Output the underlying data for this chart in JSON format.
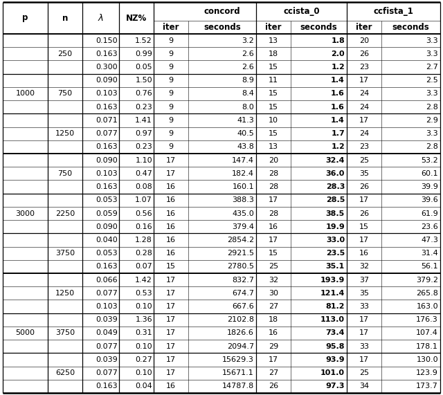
{
  "rows": [
    [
      "",
      "250",
      "0.150",
      "1.52",
      "9",
      "3.2",
      "13",
      "1.8",
      "20",
      "3.3"
    ],
    [
      "",
      "",
      "0.163",
      "0.99",
      "9",
      "2.6",
      "18",
      "2.0",
      "26",
      "3.3"
    ],
    [
      "",
      "",
      "0.300",
      "0.05",
      "9",
      "2.6",
      "15",
      "1.2",
      "23",
      "2.7"
    ],
    [
      "",
      "750",
      "0.090",
      "1.50",
      "9",
      "8.9",
      "11",
      "1.4",
      "17",
      "2.5"
    ],
    [
      "",
      "",
      "0.103",
      "0.76",
      "9",
      "8.4",
      "15",
      "1.6",
      "24",
      "3.3"
    ],
    [
      "",
      "",
      "0.163",
      "0.23",
      "9",
      "8.0",
      "15",
      "1.6",
      "24",
      "2.8"
    ],
    [
      "",
      "1250",
      "0.071",
      "1.41",
      "9",
      "41.3",
      "10",
      "1.4",
      "17",
      "2.9"
    ],
    [
      "",
      "",
      "0.077",
      "0.97",
      "9",
      "40.5",
      "15",
      "1.7",
      "24",
      "3.3"
    ],
    [
      "",
      "",
      "0.163",
      "0.23",
      "9",
      "43.8",
      "13",
      "1.2",
      "23",
      "2.8"
    ],
    [
      "",
      "750",
      "0.090",
      "1.10",
      "17",
      "147.4",
      "20",
      "32.4",
      "25",
      "53.2"
    ],
    [
      "",
      "",
      "0.103",
      "0.47",
      "17",
      "182.4",
      "28",
      "36.0",
      "35",
      "60.1"
    ],
    [
      "",
      "",
      "0.163",
      "0.08",
      "16",
      "160.1",
      "28",
      "28.3",
      "26",
      "39.9"
    ],
    [
      "",
      "2250",
      "0.053",
      "1.07",
      "16",
      "388.3",
      "17",
      "28.5",
      "17",
      "39.6"
    ],
    [
      "",
      "",
      "0.059",
      "0.56",
      "16",
      "435.0",
      "28",
      "38.5",
      "26",
      "61.9"
    ],
    [
      "",
      "",
      "0.090",
      "0.16",
      "16",
      "379.4",
      "16",
      "19.9",
      "15",
      "23.6"
    ],
    [
      "",
      "3750",
      "0.040",
      "1.28",
      "16",
      "2854.2",
      "17",
      "33.0",
      "17",
      "47.3"
    ],
    [
      "",
      "",
      "0.053",
      "0.28",
      "16",
      "2921.5",
      "15",
      "23.5",
      "16",
      "31.4"
    ],
    [
      "",
      "",
      "0.163",
      "0.07",
      "15",
      "2780.5",
      "25",
      "35.1",
      "32",
      "56.1"
    ],
    [
      "",
      "1250",
      "0.066",
      "1.42",
      "17",
      "832.7",
      "32",
      "193.9",
      "37",
      "379.2"
    ],
    [
      "",
      "",
      "0.077",
      "0.53",
      "17",
      "674.7",
      "30",
      "121.4",
      "35",
      "265.8"
    ],
    [
      "",
      "",
      "0.103",
      "0.10",
      "17",
      "667.6",
      "27",
      "81.2",
      "33",
      "163.0"
    ],
    [
      "",
      "3750",
      "0.039",
      "1.36",
      "17",
      "2102.8",
      "18",
      "113.0",
      "17",
      "176.3"
    ],
    [
      "",
      "",
      "0.049",
      "0.31",
      "17",
      "1826.6",
      "16",
      "73.4",
      "17",
      "107.4"
    ],
    [
      "",
      "",
      "0.077",
      "0.10",
      "17",
      "2094.7",
      "29",
      "95.8",
      "33",
      "178.1"
    ],
    [
      "",
      "6250",
      "0.039",
      "0.27",
      "17",
      "15629.3",
      "17",
      "93.9",
      "17",
      "130.0"
    ],
    [
      "",
      "",
      "0.077",
      "0.10",
      "17",
      "15671.1",
      "27",
      "101.0",
      "25",
      "123.9"
    ],
    [
      "",
      "",
      "0.163",
      "0.04",
      "16",
      "14787.8",
      "26",
      "97.3",
      "34",
      "173.7"
    ]
  ],
  "p_labels": {
    "0": "1000",
    "9": "3000",
    "18": "5000"
  },
  "p_spans": {
    "0": 9,
    "9": 9,
    "18": 9
  },
  "n_labels": {
    "0": "250",
    "3": "750",
    "6": "1250",
    "9": "750",
    "12": "2250",
    "15": "3750",
    "18": "1250",
    "21": "3750",
    "24": "6250"
  },
  "n_spans": {
    "0": 3,
    "3": 3,
    "6": 3,
    "9": 3,
    "12": 3,
    "15": 3,
    "18": 3,
    "21": 3,
    "24": 3
  },
  "p_group_ends": [
    8,
    17
  ],
  "n_group_ends": [
    2,
    5,
    8,
    11,
    14,
    17,
    20,
    23,
    26
  ],
  "font_size": 8.0,
  "header_font_size": 8.5,
  "bg_color": "#ffffff"
}
